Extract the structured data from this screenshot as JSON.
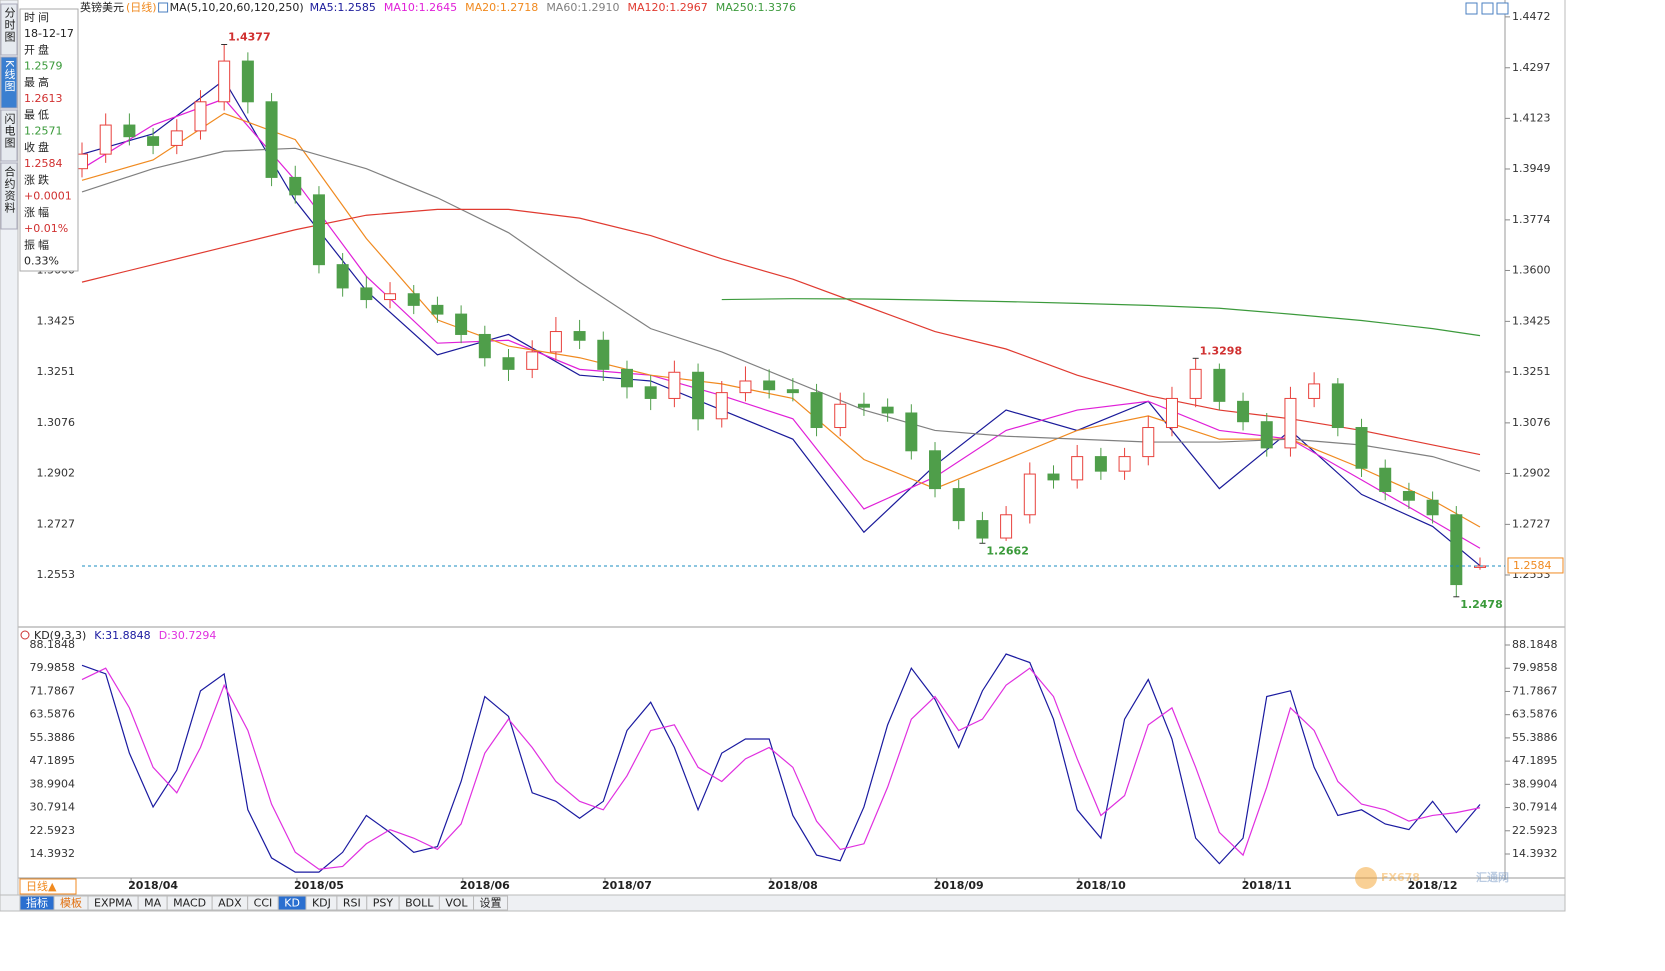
{
  "toolbar": {
    "symbol": "英镑美元",
    "period": "(日线)",
    "indicator": "MA(5,10,20,60,120,250)"
  },
  "sidebar": [
    "分时图",
    "K线图",
    "闪电图",
    "合约资料"
  ],
  "info": {
    "labels": [
      "时间",
      "开盘",
      "最高",
      "最低",
      "收盘",
      "涨跌",
      "涨幅",
      "振幅"
    ],
    "time": "18-12-17",
    "change": "+0.0001",
    "change_pct": "+0.01%",
    "amplitude": "0.33%"
  },
  "chart_data": [
    {
      "type": "candlestick",
      "up_color": "#e8413c",
      "down_color": "#4f9e4a",
      "open": [
        1.395,
        1.4,
        1.41,
        1.406,
        1.403,
        1.408,
        1.418,
        1.432,
        1.418,
        1.392,
        1.386,
        1.362,
        1.354,
        1.35,
        1.352,
        1.348,
        1.345,
        1.338,
        1.33,
        1.326,
        1.332,
        1.339,
        1.336,
        1.326,
        1.32,
        1.316,
        1.325,
        1.309,
        1.318,
        1.322,
        1.319,
        1.318,
        1.306,
        1.314,
        1.313,
        1.311,
        1.298,
        1.285,
        1.274,
        1.268,
        1.276,
        1.29,
        1.288,
        1.296,
        1.291,
        1.296,
        1.306,
        1.316,
        1.326,
        1.315,
        1.308,
        1.299,
        1.316,
        1.321,
        1.306,
        1.292,
        1.284,
        1.281,
        1.276,
        1.2579
      ],
      "high": [
        1.404,
        1.414,
        1.414,
        1.409,
        1.412,
        1.422,
        1.4377,
        1.435,
        1.421,
        1.396,
        1.389,
        1.366,
        1.358,
        1.356,
        1.355,
        1.351,
        1.348,
        1.341,
        1.333,
        1.336,
        1.344,
        1.343,
        1.339,
        1.329,
        1.324,
        1.329,
        1.328,
        1.322,
        1.327,
        1.326,
        1.323,
        1.321,
        1.318,
        1.318,
        1.316,
        1.314,
        1.301,
        1.288,
        1.277,
        1.279,
        1.294,
        1.293,
        1.3,
        1.299,
        1.299,
        1.31,
        1.32,
        1.3298,
        1.328,
        1.318,
        1.311,
        1.32,
        1.325,
        1.323,
        1.309,
        1.295,
        1.287,
        1.284,
        1.279,
        1.2613
      ],
      "low": [
        1.392,
        1.397,
        1.403,
        1.4,
        1.4,
        1.405,
        1.415,
        1.414,
        1.389,
        1.383,
        1.359,
        1.351,
        1.347,
        1.347,
        1.345,
        1.342,
        1.335,
        1.327,
        1.322,
        1.323,
        1.329,
        1.333,
        1.322,
        1.316,
        1.312,
        1.313,
        1.305,
        1.306,
        1.315,
        1.316,
        1.315,
        1.303,
        1.303,
        1.31,
        1.308,
        1.295,
        1.282,
        1.271,
        1.2662,
        1.267,
        1.273,
        1.285,
        1.285,
        1.288,
        1.288,
        1.293,
        1.303,
        1.313,
        1.312,
        1.305,
        1.296,
        1.296,
        1.313,
        1.303,
        1.289,
        1.281,
        1.278,
        1.273,
        1.2478,
        1.2571
      ],
      "close": [
        1.4,
        1.41,
        1.406,
        1.403,
        1.408,
        1.418,
        1.432,
        1.418,
        1.392,
        1.386,
        1.362,
        1.354,
        1.35,
        1.352,
        1.348,
        1.345,
        1.338,
        1.33,
        1.326,
        1.332,
        1.339,
        1.336,
        1.326,
        1.32,
        1.316,
        1.325,
        1.309,
        1.318,
        1.322,
        1.319,
        1.318,
        1.306,
        1.314,
        1.313,
        1.311,
        1.298,
        1.285,
        1.274,
        1.268,
        1.276,
        1.29,
        1.288,
        1.296,
        1.291,
        1.296,
        1.306,
        1.316,
        1.326,
        1.315,
        1.308,
        1.299,
        1.316,
        1.321,
        1.306,
        1.292,
        1.284,
        1.281,
        1.276,
        1.252,
        1.2584
      ],
      "high_labels": [
        null,
        null,
        null,
        null,
        null,
        null,
        "1.4377",
        null,
        null,
        null,
        null,
        null,
        null,
        null,
        null,
        null,
        null,
        null,
        null,
        null,
        null,
        null,
        null,
        null,
        null,
        null,
        null,
        null,
        null,
        null,
        null,
        null,
        null,
        null,
        null,
        null,
        null,
        null,
        null,
        null,
        null,
        null,
        null,
        null,
        null,
        null,
        null,
        "1.3298",
        null,
        null,
        null,
        null,
        null,
        null,
        null,
        null,
        null,
        null,
        null,
        null
      ],
      "low_labels": [
        null,
        null,
        null,
        null,
        null,
        null,
        null,
        null,
        null,
        null,
        null,
        null,
        null,
        null,
        null,
        null,
        null,
        null,
        null,
        null,
        null,
        null,
        null,
        null,
        null,
        null,
        null,
        null,
        null,
        null,
        null,
        null,
        null,
        null,
        null,
        null,
        null,
        null,
        "1.2662",
        null,
        null,
        null,
        null,
        null,
        null,
        null,
        null,
        null,
        null,
        null,
        null,
        null,
        null,
        null,
        null,
        null,
        null,
        null,
        "1.2478",
        null
      ],
      "series": [
        {
          "name": "MA5:1.2585",
          "color": "#1a1a9a",
          "x": [
            0,
            3,
            6,
            9,
            12,
            15,
            18,
            21,
            24,
            27,
            30,
            33,
            36,
            39,
            42,
            45,
            48,
            51,
            54,
            57,
            59
          ],
          "values": [
            1.4,
            1.407,
            1.4255,
            1.384,
            1.353,
            1.331,
            1.338,
            1.324,
            1.322,
            1.312,
            1.302,
            1.27,
            1.293,
            1.312,
            1.305,
            1.315,
            1.285,
            1.305,
            1.283,
            1.272,
            1.2585
          ]
        },
        {
          "name": "MA10:1.2645",
          "color": "#e020d8",
          "x": [
            0,
            3,
            6,
            9,
            12,
            15,
            18,
            21,
            24,
            27,
            30,
            33,
            36,
            39,
            42,
            45,
            48,
            51,
            54,
            57,
            59
          ],
          "values": [
            1.395,
            1.41,
            1.419,
            1.391,
            1.358,
            1.335,
            1.336,
            1.326,
            1.324,
            1.317,
            1.309,
            1.278,
            1.289,
            1.305,
            1.312,
            1.315,
            1.305,
            1.302,
            1.288,
            1.274,
            1.2645
          ]
        },
        {
          "name": "MA20:1.2718",
          "color": "#f08a20",
          "x": [
            0,
            3,
            6,
            9,
            12,
            15,
            18,
            21,
            24,
            27,
            30,
            33,
            36,
            39,
            42,
            45,
            48,
            51,
            54,
            57,
            59
          ],
          "values": [
            1.391,
            1.398,
            1.414,
            1.405,
            1.371,
            1.343,
            1.334,
            1.33,
            1.324,
            1.321,
            1.316,
            1.295,
            1.285,
            1.295,
            1.305,
            1.31,
            1.302,
            1.302,
            1.292,
            1.281,
            1.2718
          ]
        },
        {
          "name": "MA60:1.2910",
          "color": "#808080",
          "x": [
            0,
            3,
            6,
            9,
            12,
            15,
            18,
            21,
            24,
            27,
            30,
            33,
            36,
            39,
            42,
            45,
            48,
            51,
            54,
            57,
            59
          ],
          "values": [
            1.387,
            1.395,
            1.401,
            1.402,
            1.395,
            1.385,
            1.373,
            1.356,
            1.34,
            1.332,
            1.322,
            1.312,
            1.305,
            1.303,
            1.302,
            1.301,
            1.301,
            1.302,
            1.3,
            1.296,
            1.291
          ]
        },
        {
          "name": "MA120:1.2967",
          "color": "#e03a30",
          "x": [
            0,
            3,
            6,
            9,
            12,
            15,
            18,
            21,
            24,
            27,
            30,
            33,
            36,
            39,
            42,
            45,
            48,
            51,
            54,
            57,
            59
          ],
          "values": [
            1.356,
            1.362,
            1.368,
            1.374,
            1.379,
            1.381,
            1.381,
            1.378,
            1.372,
            1.364,
            1.357,
            1.348,
            1.339,
            1.333,
            1.324,
            1.317,
            1.312,
            1.309,
            1.305,
            1.3,
            1.2967
          ]
        },
        {
          "name": "MA250:1.3376",
          "color": "#3c9a3c",
          "x": [
            27,
            30,
            33,
            36,
            39,
            42,
            45,
            48,
            51,
            54,
            57,
            59
          ],
          "values": [
            1.35,
            1.3503,
            1.3502,
            1.3498,
            1.3493,
            1.3487,
            1.348,
            1.347,
            1.345,
            1.3428,
            1.34,
            1.3376
          ]
        }
      ],
      "ylim": [
        1.2381,
        1.453
      ],
      "yticks": [
        1.4472,
        1.4297,
        1.4123,
        1.3949,
        1.3774,
        {
          "value": 1.36,
          "label": "1.3600"
        },
        1.3425,
        1.3251,
        1.3076,
        1.2902,
        1.2727,
        1.2553
      ]
    },
    {
      "type": "line",
      "title": "KD(9,3,3)",
      "categories": [
        null,
        null,
        null,
        "2018/04",
        null,
        null,
        null,
        null,
        null,
        null,
        "2018/05",
        null,
        null,
        null,
        null,
        null,
        null,
        "2018/06",
        null,
        null,
        null,
        null,
        null,
        "2018/07",
        null,
        null,
        null,
        null,
        null,
        null,
        "2018/08",
        null,
        null,
        null,
        null,
        null,
        null,
        "2018/09",
        null,
        null,
        null,
        null,
        null,
        "2018/10",
        null,
        null,
        null,
        null,
        null,
        null,
        "2018/11",
        null,
        null,
        null,
        null,
        null,
        null,
        "2018/12",
        null,
        null
      ],
      "series": [
        {
          "name": "K:31.8848",
          "color": "#1a1aa0",
          "values": [
            81,
            78,
            50,
            31,
            44,
            72,
            78,
            30,
            13,
            8,
            8,
            15,
            28,
            22,
            15,
            17,
            40,
            70,
            63,
            36,
            33,
            27,
            33,
            58,
            68,
            52,
            30,
            50,
            55,
            55,
            28,
            14,
            12,
            31,
            60,
            80,
            69,
            52,
            72,
            85,
            82,
            62,
            30,
            20,
            62,
            76,
            55,
            20,
            11,
            20,
            70,
            72,
            45,
            28,
            30,
            25,
            23,
            33,
            22,
            31.8848
          ]
        },
        {
          "name": "D:30.7294",
          "color": "#e030e0",
          "values": [
            76,
            80,
            66,
            45,
            36,
            52,
            74,
            58,
            32,
            15,
            9,
            10,
            18,
            23,
            20,
            16,
            25,
            50,
            62,
            52,
            40,
            33,
            30,
            42,
            58,
            60,
            45,
            40,
            48,
            52,
            45,
            26,
            16,
            18,
            38,
            62,
            70,
            58,
            62,
            74,
            80,
            70,
            48,
            28,
            35,
            60,
            66,
            45,
            22,
            14,
            38,
            66,
            58,
            40,
            32,
            30,
            26,
            28,
            29,
            30.7294
          ]
        }
      ],
      "ylim": [
        5.92,
        91.72
      ],
      "yticks": [
        88.1848,
        79.9858,
        71.7867,
        63.5876,
        55.3886,
        47.1895,
        38.9904,
        30.7914,
        22.5923,
        14.3932
      ]
    }
  ],
  "bottom": {
    "period": "日线▲",
    "tabs": [
      "指标",
      "模板",
      "EXPMA",
      "MA",
      "MACD",
      "ADX",
      "CCI",
      "KD",
      "KDJ",
      "RSI",
      "PSY",
      "BOLL",
      "VOL",
      "设置"
    ],
    "active_tab": "KD",
    "watermark": [
      "FX678",
      "汇通网"
    ]
  }
}
